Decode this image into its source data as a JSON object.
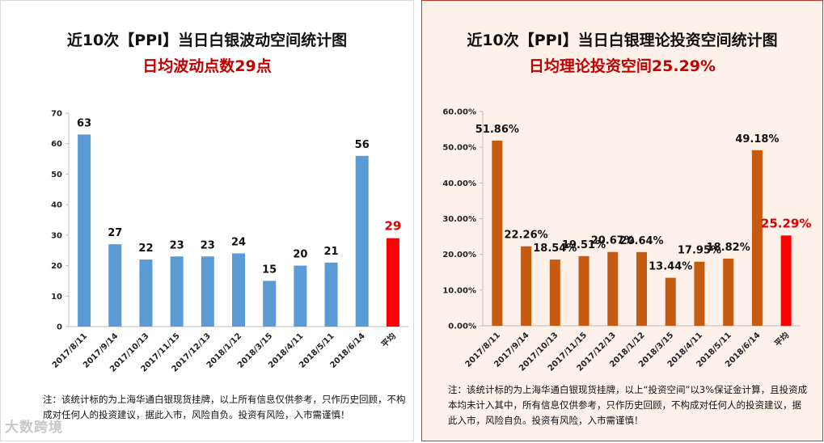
{
  "left": {
    "title": "近10次【PPI】当日白银波动空间统计图",
    "subtitle": "日均波动点数29点",
    "note": "注：该统计标的为上海华通白银现货挂牌，以上所有信息仅供参考，只作历史回顾，不构成对任何人的投资建议，据此入市，风险自负。投资有风险，入市需谨慎！"
  },
  "right": {
    "title": "近10次【PPI】当日白银理论投资空间统计图",
    "subtitle": "日均理论投资空间25.29%",
    "note": "注：该统计标的为上海华通白银现货挂牌，以上“投资空间”以3%保证金计算，且投资成本均未计入其中，所有信息仅供参考，只作历史回顾，不构成对任何人的投资建议，据此入市，风险自负。投资有风险，入市需谨慎！"
  },
  "watermark": "大数跨境",
  "chart_data": [
    {
      "type": "bar",
      "title": "近10次【PPI】当日白银波动空间统计图",
      "subtitle": "日均波动点数29点",
      "categories": [
        "2017/8/11",
        "2017/9/14",
        "2017/10/13",
        "2017/11/15",
        "2017/12/13",
        "2018/1/12",
        "2018/3/15",
        "2018/4/11",
        "2018/5/11",
        "2018/6/14",
        "平均"
      ],
      "values": [
        63,
        27,
        22,
        23,
        23,
        24,
        15,
        20,
        21,
        56,
        29
      ],
      "labels": [
        "63",
        "27",
        "22",
        "23",
        "23",
        "24",
        "15",
        "20",
        "21",
        "56",
        "29"
      ],
      "ylim": [
        0,
        70
      ],
      "yticks": [
        "0",
        "10",
        "20",
        "30",
        "40",
        "50",
        "60",
        "70"
      ],
      "bar_color": "#5b9bd5",
      "highlight_color": "#ff0000",
      "grid": false
    },
    {
      "type": "bar",
      "title": "近10次【PPI】当日白银理论投资空间统计图",
      "subtitle": "日均理论投资空间25.29%",
      "categories": [
        "2017/8/11",
        "2017/9/14",
        "2017/10/13",
        "2017/11/15",
        "2017/12/13",
        "2018/1/12",
        "2018/3/15",
        "2018/4/11",
        "2018/5/11",
        "2018/6/14",
        "平均"
      ],
      "values": [
        51.86,
        22.26,
        18.54,
        19.51,
        20.67,
        20.64,
        13.44,
        17.95,
        18.82,
        49.18,
        25.29
      ],
      "labels": [
        "51.86%",
        "22.26%",
        "18.54%",
        "19.51%",
        "20.67%",
        "20.64%",
        "13.44%",
        "17.95%",
        "18.82%",
        "49.18%",
        "25.29%"
      ],
      "ylim": [
        0,
        60
      ],
      "yticks": [
        "0.00%",
        "10.00%",
        "20.00%",
        "30.00%",
        "40.00%",
        "50.00%",
        "60.00%"
      ],
      "bar_color": "#c55a11",
      "highlight_color": "#ff0000",
      "grid": false
    }
  ]
}
